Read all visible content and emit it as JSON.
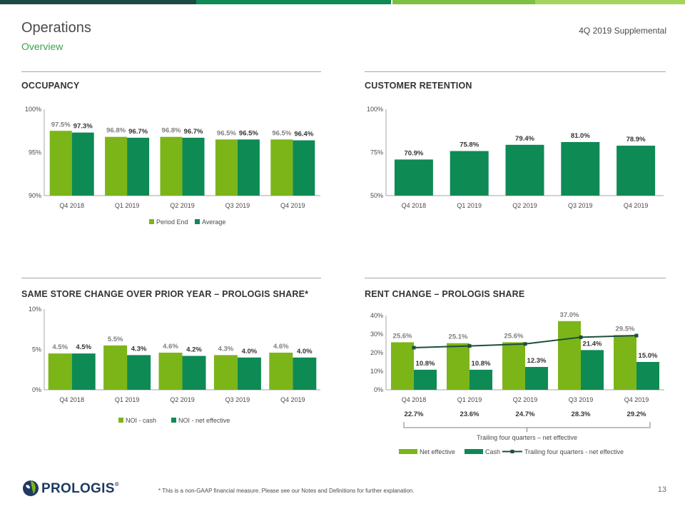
{
  "header": {
    "title": "Operations",
    "subtitle": "Overview",
    "doc_label": "4Q 2019 Supplemental"
  },
  "colors": {
    "light_green": "#7cb518",
    "dark_green": "#0e8a55",
    "navy": "#1e3a5f",
    "line_dark": "#1f4e3d",
    "topbar": [
      "#1e4a44",
      "#0e8a55",
      "#2fa24a",
      "#7cc142",
      "#a6d45a"
    ]
  },
  "footer": {
    "footnote": "*  This is a non-GAAP financial measure.  Please see our Notes and Definitions for further explanation.",
    "page_number": "13",
    "logo_text": "PROLOGIS",
    "logo_reg": "®",
    "logo_icon": "globe-leaf-icon"
  },
  "charts": {
    "occupancy": {
      "title": "OCCUPANCY"
    },
    "retention": {
      "title": "CUSTOMER RETENTION"
    },
    "same_store": {
      "title": "SAME STORE CHANGE OVER PRIOR YEAR – PROLOGIS SHARE*"
    },
    "rent_change": {
      "title": "RENT CHANGE – PROLOGIS SHARE"
    }
  },
  "chart_data": [
    {
      "id": "occupancy",
      "type": "bar",
      "title": "OCCUPANCY",
      "categories": [
        "Q4 2018",
        "Q1 2019",
        "Q2 2019",
        "Q3 2019",
        "Q4 2019"
      ],
      "series": [
        {
          "name": "Period End",
          "values": [
            97.5,
            96.8,
            96.8,
            96.5,
            96.5
          ],
          "labels": [
            "97.5%",
            "96.8%",
            "96.8%",
            "96.5%",
            "96.5%"
          ],
          "color": "#7cb518"
        },
        {
          "name": "Average",
          "values": [
            97.3,
            96.7,
            96.7,
            96.5,
            96.4
          ],
          "labels": [
            "97.3%",
            "96.7%",
            "96.7%",
            "96.5%",
            "96.4%"
          ],
          "color": "#0e8a55"
        }
      ],
      "yticks": [
        "90%",
        "95%",
        "100%"
      ],
      "ylim": [
        90,
        100
      ],
      "legend": "bottom"
    },
    {
      "id": "retention",
      "type": "bar",
      "title": "CUSTOMER RETENTION",
      "categories": [
        "Q4 2018",
        "Q1 2019",
        "Q2 2019",
        "Q3 2019",
        "Q4 2019"
      ],
      "series": [
        {
          "values": [
            70.9,
            75.8,
            79.4,
            81.0,
            78.9
          ],
          "labels": [
            "70.9%",
            "75.8%",
            "79.4%",
            "81.0%",
            "78.9%"
          ],
          "color": "#0e8a55"
        }
      ],
      "yticks": [
        "50%",
        "75%",
        "100%"
      ],
      "ylim": [
        50,
        100
      ]
    },
    {
      "id": "same_store",
      "type": "bar",
      "title": "SAME STORE CHANGE OVER PRIOR YEAR – PROLOGIS SHARE*",
      "categories": [
        "Q4 2018",
        "Q1 2019",
        "Q2 2019",
        "Q3 2019",
        "Q4 2019"
      ],
      "series": [
        {
          "name": "NOI - cash",
          "values": [
            4.5,
            5.5,
            4.6,
            4.3,
            4.6
          ],
          "labels": [
            "4.5%",
            "5.5%",
            "4.6%",
            "4.3%",
            "4.6%"
          ],
          "color": "#7cb518"
        },
        {
          "name": "NOI - net effective",
          "values": [
            4.5,
            4.3,
            4.2,
            4.0,
            4.0
          ],
          "labels": [
            "4.5%",
            "4.3%",
            "4.2%",
            "4.0%",
            "4.0%"
          ],
          "color": "#0e8a55"
        }
      ],
      "yticks": [
        "0%",
        "5%",
        "10%"
      ],
      "ylim": [
        0,
        10
      ],
      "legend": "bottom"
    },
    {
      "id": "rent_change",
      "type": "bar",
      "title": "RENT CHANGE – PROLOGIS SHARE",
      "categories": [
        "Q4 2018",
        "Q1 2019",
        "Q2 2019",
        "Q3 2019",
        "Q4 2019"
      ],
      "series": [
        {
          "name": "Net effective",
          "values": [
            25.6,
            25.1,
            25.6,
            37.0,
            29.5
          ],
          "labels": [
            "25.6%",
            "25.1%",
            "25.6%",
            "37.0%",
            "29.5%"
          ],
          "color": "#7cb518"
        },
        {
          "name": "Cash",
          "values": [
            10.8,
            10.8,
            12.3,
            21.4,
            15.0
          ],
          "labels": [
            "10.8%",
            "10.8%",
            "12.3%",
            "21.4%",
            "15.0%"
          ],
          "color": "#0e8a55"
        },
        {
          "name": "Trailing four quarters - net effective",
          "type": "line",
          "values": [
            22.7,
            23.6,
            24.7,
            28.3,
            29.2
          ],
          "labels": [
            "22.7%",
            "23.6%",
            "24.7%",
            "28.3%",
            "29.2%"
          ],
          "color": "#1f4e3d"
        }
      ],
      "bracket_label": "Trailing four quarters – net effective",
      "yticks": [
        "0%",
        "10%",
        "20%",
        "30%",
        "40%"
      ],
      "ylim": [
        0,
        40
      ],
      "legend": "bottom"
    }
  ]
}
